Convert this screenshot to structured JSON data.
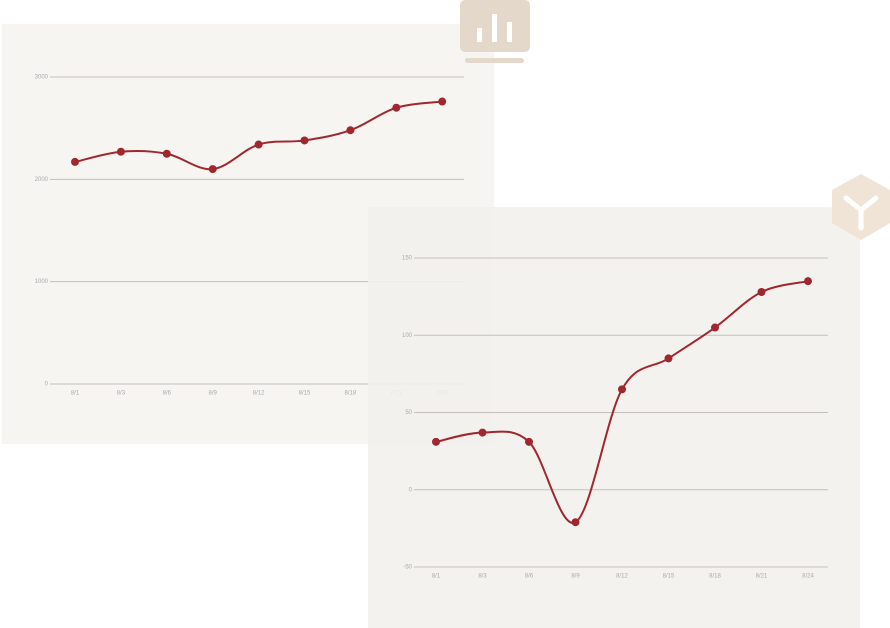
{
  "chart_data": [
    {
      "type": "line",
      "categories": [
        "8/1",
        "8/3",
        "8/6",
        "8/9",
        "8/12",
        "8/15",
        "8/18",
        "8/21",
        "8/24"
      ],
      "values": [
        2170,
        2270,
        2250,
        2100,
        2340,
        2380,
        2480,
        2700,
        2760
      ],
      "color": "#a0272d",
      "ylim": [
        0,
        3000
      ],
      "yticks": [
        0,
        1000,
        2000,
        3000
      ],
      "grid": true
    },
    {
      "type": "line",
      "categories": [
        "8/1",
        "8/3",
        "8/6",
        "8/9",
        "8/12",
        "8/15",
        "8/18",
        "8/21",
        "8/24"
      ],
      "values": [
        31,
        37,
        31,
        -21,
        65,
        85,
        105,
        128,
        135
      ],
      "color": "#a0272d",
      "ylim": [
        -50,
        150
      ],
      "yticks": [
        -50,
        0,
        50,
        100,
        150
      ],
      "grid": true
    }
  ]
}
